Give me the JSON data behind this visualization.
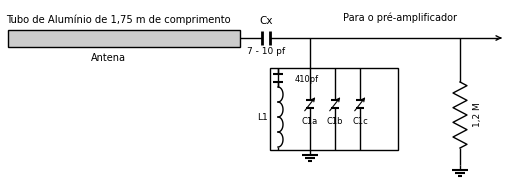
{
  "title_text": "Tubo de Alumínio de 1,75 m de comprimento",
  "label_antena": "Antena",
  "label_cx": "Cx",
  "label_cx_val": "7 - 10 pf",
  "label_output": "Para o pré-amplificador",
  "label_l1": "L1",
  "label_410pf": "410pf",
  "label_c1a": "C1a",
  "label_c1b": "C1b",
  "label_c1c": "C1c",
  "label_12m": "1,2 M",
  "bg_color": "#ffffff",
  "line_color": "#000000",
  "ant_fill": "#cccccc",
  "fig_width": 5.09,
  "fig_height": 1.85,
  "dpi": 100
}
